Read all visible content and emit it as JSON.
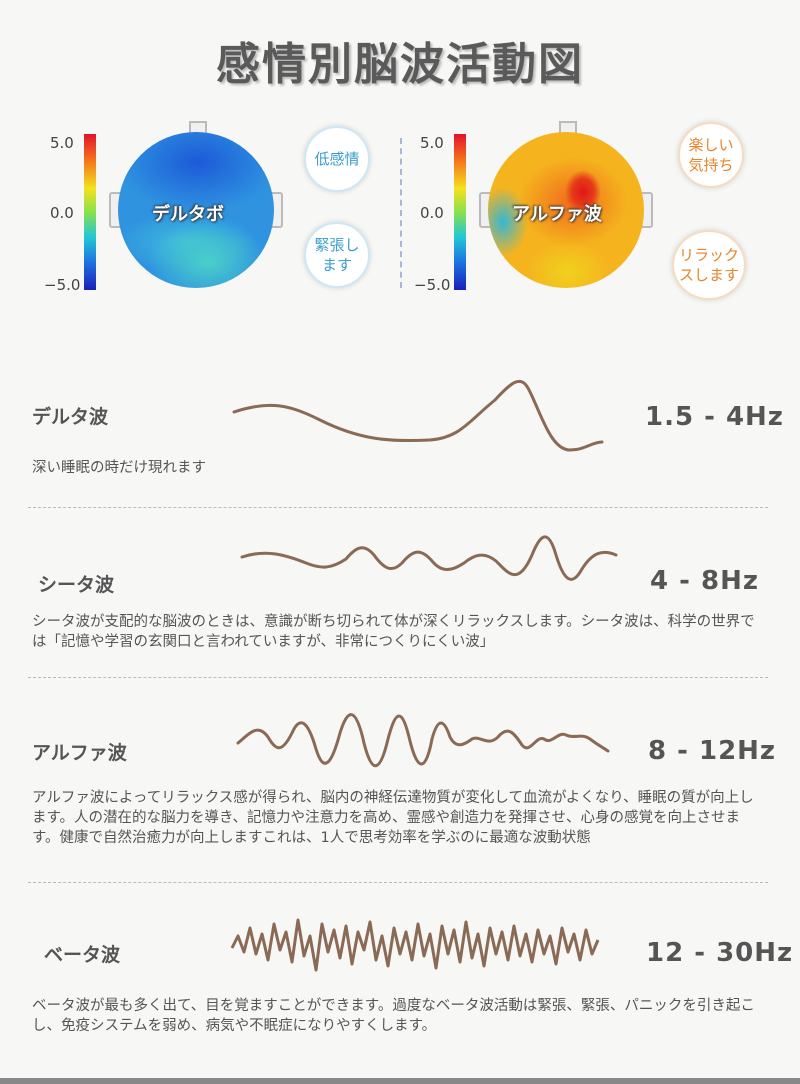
{
  "title": "感情別脳波活動図",
  "maps": {
    "scale_max": "5.0",
    "scale_mid": "0.0",
    "scale_min": "−5.0",
    "left": {
      "label": "デルタボ",
      "bubble_top": "低感情",
      "bubble_bottom": "緊張し\nます"
    },
    "right": {
      "label": "アルファ波",
      "bubble_top": "楽しい\n気持ち",
      "bubble_bottom": "リラック\nスします"
    }
  },
  "waves": [
    {
      "name": "デルタ波",
      "freq": "1.5 - 4Hz",
      "desc": "深い睡眠の時だけ現れます"
    },
    {
      "name": "シータ波",
      "freq": "4 - 8Hz",
      "desc": "シータ波が支配的な脳波のときは、意識が断ち切られて体が深くリラックスします。シータ波は、科学の世界では「記憶や学習の玄関口と言われていますが、非常につくりにくい波」"
    },
    {
      "name": "アルファ波",
      "freq": "8 - 12Hz",
      "desc": "アルファ波によってリラックス感が得られ、脳内の神経伝達物質が変化して血流がよくなり、睡眠の質が向上します。人の潜在的な脳力を導き、記憶力や注意力を高め、霊感や創造力を発揮させ、心身の感覚を向上させます。健康で自然治癒力が向上しますこれは、1人で思考効率を学ぶのに最適な波動状態"
    },
    {
      "name": "ベータ波",
      "freq": "12 - 30Hz",
      "desc": "ベータ波が最も多く出て、目を覚ますことができます。過度なベータ波活動は緊張、緊張、パニックを引き起こし、免疫システムを弱め、病気や不眠症になりやすくします。"
    }
  ],
  "colors": {
    "wave": "#8a6a55",
    "text": "#555555",
    "accent_blue": "#3a9ecf",
    "accent_orange": "#e8852a"
  }
}
